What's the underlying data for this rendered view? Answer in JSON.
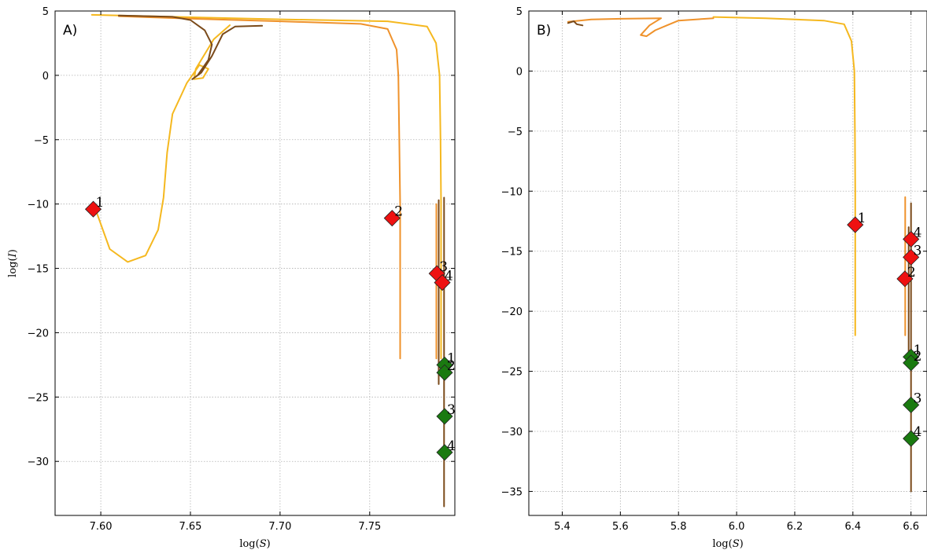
{
  "chart_data": [
    {
      "type": "scatter",
      "panel_label": "A)",
      "xlabel": "log(S)",
      "ylabel": "log(I)",
      "xlim": [
        7.5745,
        7.7975
      ],
      "ylim": [
        -34.2,
        5
      ],
      "xticks": [
        7.6,
        7.65,
        7.7,
        7.75
      ],
      "xtick_labels": [
        "7.60",
        "7.65",
        "7.70",
        "7.75"
      ],
      "yticks": [
        5,
        0,
        -5,
        -10,
        -15,
        -20,
        -25,
        -30
      ],
      "ytick_labels": [
        "5",
        "0",
        "−5",
        "−10",
        "−15",
        "−20",
        "−25",
        "−30"
      ],
      "grid": true,
      "trajectories": [
        {
          "color": "#f5b81f",
          "points": [
            [
              7.595,
              4.7
            ],
            [
              7.64,
              4.55
            ],
            [
              7.7,
              4.35
            ],
            [
              7.76,
              4.2
            ],
            [
              7.782,
              3.8
            ],
            [
              7.787,
              2.5
            ],
            [
              7.789,
              0
            ],
            [
              7.7895,
              -5
            ],
            [
              7.7898,
              -10
            ],
            [
              7.7898,
              -22
            ]
          ]
        },
        {
          "color": "#ef922b",
          "points": [
            [
              7.61,
              4.6
            ],
            [
              7.65,
              4.4
            ],
            [
              7.7,
              4.2
            ],
            [
              7.745,
              4.0
            ],
            [
              7.76,
              3.6
            ],
            [
              7.765,
              2.0
            ],
            [
              7.766,
              0
            ],
            [
              7.7665,
              -5
            ],
            [
              7.767,
              -10
            ],
            [
              7.767,
              -22
            ]
          ]
        },
        {
          "color": "#f5b81f",
          "points": [
            [
              7.672,
              3.9
            ],
            [
              7.663,
              2.8
            ],
            [
              7.653,
              0.5
            ],
            [
              7.652,
              -0.3
            ],
            [
              7.657,
              -0.2
            ],
            [
              7.66,
              0.5
            ],
            [
              7.655,
              0.8
            ],
            [
              7.648,
              -0.6
            ],
            [
              7.645,
              -1.5
            ],
            [
              7.64,
              -3
            ],
            [
              7.637,
              -6
            ],
            [
              7.635,
              -9.5
            ],
            [
              7.632,
              -12
            ],
            [
              7.625,
              -14
            ],
            [
              7.615,
              -14.5
            ],
            [
              7.605,
              -13.5
            ],
            [
              7.597,
              -10.4
            ]
          ]
        },
        {
          "color": "#7a4a1a",
          "points": [
            [
              7.61,
              4.65
            ],
            [
              7.64,
              4.55
            ],
            [
              7.65,
              4.3
            ],
            [
              7.658,
              3.5
            ],
            [
              7.662,
              2.4
            ],
            [
              7.66,
              1.2
            ],
            [
              7.654,
              0
            ],
            [
              7.651,
              -0.3
            ],
            [
              7.656,
              0.2
            ],
            [
              7.662,
              1.5
            ],
            [
              7.668,
              3.2
            ],
            [
              7.675,
              3.8
            ],
            [
              7.69,
              3.85
            ]
          ]
        },
        {
          "color": "#7a4a1a",
          "points": [
            [
              7.7915,
              -9.5
            ],
            [
              7.7915,
              -20
            ],
            [
              7.7915,
              -33.5
            ]
          ]
        },
        {
          "color": "#7a4a1a",
          "points": [
            [
              7.7885,
              -9.7
            ],
            [
              7.7885,
              -24
            ]
          ]
        },
        {
          "color": "#ef922b",
          "points": [
            [
              7.7872,
              -10
            ],
            [
              7.7872,
              -22
            ]
          ]
        }
      ],
      "markers": [
        {
          "label": "1",
          "x": 7.5958,
          "y": -10.4,
          "color": "#ee1111"
        },
        {
          "label": "2",
          "x": 7.7625,
          "y": -11.1,
          "color": "#ee1111"
        },
        {
          "label": "3",
          "x": 7.7875,
          "y": -15.4,
          "color": "#ee1111"
        },
        {
          "label": "4",
          "x": 7.7905,
          "y": -16.1,
          "color": "#ee1111"
        },
        {
          "label": "1",
          "x": 7.7918,
          "y": -22.5,
          "color": "#1a7a10"
        },
        {
          "label": "2",
          "x": 7.7918,
          "y": -23.1,
          "color": "#1a7a10"
        },
        {
          "label": "3",
          "x": 7.7918,
          "y": -26.5,
          "color": "#1a7a10"
        },
        {
          "label": "4",
          "x": 7.7918,
          "y": -29.3,
          "color": "#1a7a10"
        }
      ]
    },
    {
      "type": "scatter",
      "panel_label": "B)",
      "xlabel": "log(S)",
      "ylabel": "",
      "xlim": [
        5.285,
        6.655
      ],
      "ylim": [
        -37,
        5
      ],
      "xticks": [
        5.4,
        5.6,
        5.8,
        6.0,
        6.2,
        6.4,
        6.6
      ],
      "xtick_labels": [
        "5.4",
        "5.6",
        "5.8",
        "6.0",
        "6.2",
        "6.4",
        "6.6"
      ],
      "yticks": [
        5,
        0,
        -5,
        -10,
        -15,
        -20,
        -25,
        -30,
        -35
      ],
      "ytick_labels": [
        "5",
        "0",
        "−5",
        "−10",
        "−15",
        "−20",
        "−25",
        "−30",
        "−35"
      ],
      "grid": true,
      "trajectories": [
        {
          "color": "#f5b81f",
          "points": [
            [
              5.92,
              4.5
            ],
            [
              6.1,
              4.4
            ],
            [
              6.3,
              4.2
            ],
            [
              6.37,
              3.9
            ],
            [
              6.395,
              2.5
            ],
            [
              6.405,
              0
            ],
            [
              6.407,
              -5
            ],
            [
              6.408,
              -10
            ],
            [
              6.408,
              -20
            ],
            [
              6.408,
              -22
            ]
          ]
        },
        {
          "color": "#ef922b",
          "points": [
            [
              5.42,
              4.1
            ],
            [
              5.5,
              4.3
            ],
            [
              5.6,
              4.35
            ],
            [
              5.74,
              4.4
            ],
            [
              5.7,
              3.8
            ],
            [
              5.67,
              3.0
            ],
            [
              5.69,
              2.9
            ],
            [
              5.72,
              3.4
            ],
            [
              5.76,
              3.8
            ],
            [
              5.8,
              4.2
            ],
            [
              5.92,
              4.4
            ]
          ]
        },
        {
          "color": "#7a4a1a",
          "points": [
            [
              5.42,
              4.0
            ],
            [
              5.44,
              4.15
            ],
            [
              5.45,
              3.9
            ],
            [
              5.47,
              3.8
            ]
          ]
        },
        {
          "color": "#7a4a1a",
          "points": [
            [
              6.6,
              -11
            ],
            [
              6.6,
              -25
            ],
            [
              6.6,
              -35
            ]
          ]
        },
        {
          "color": "#ef922b",
          "points": [
            [
              6.58,
              -10.5
            ],
            [
              6.58,
              -22
            ]
          ]
        },
        {
          "color": "#7a4a1a",
          "points": [
            [
              6.592,
              -13
            ],
            [
              6.592,
              -24
            ]
          ]
        }
      ],
      "markers": [
        {
          "label": "1",
          "x": 6.408,
          "y": -12.8,
          "color": "#ee1111"
        },
        {
          "label": "2",
          "x": 6.579,
          "y": -17.3,
          "color": "#ee1111"
        },
        {
          "label": "3",
          "x": 6.6,
          "y": -15.5,
          "color": "#ee1111"
        },
        {
          "label": "4",
          "x": 6.6,
          "y": -14.0,
          "color": "#ee1111"
        },
        {
          "label": "1",
          "x": 6.6,
          "y": -23.8,
          "color": "#1a7a10"
        },
        {
          "label": "2",
          "x": 6.6,
          "y": -24.3,
          "color": "#1a7a10"
        },
        {
          "label": "3",
          "x": 6.6,
          "y": -27.8,
          "color": "#1a7a10"
        },
        {
          "label": "4",
          "x": 6.6,
          "y": -30.6,
          "color": "#1a7a10"
        }
      ]
    }
  ]
}
